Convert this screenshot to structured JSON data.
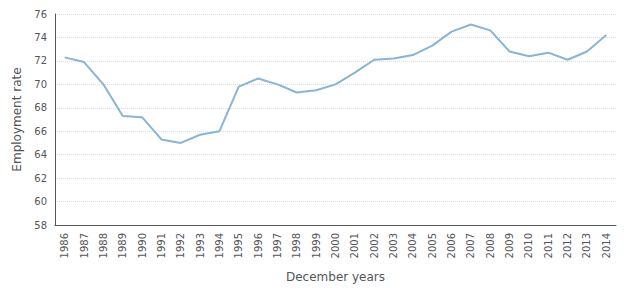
{
  "chart_data": {
    "type": "line",
    "x": [
      1986,
      1987,
      1988,
      1989,
      1990,
      1991,
      1992,
      1993,
      1994,
      1995,
      1996,
      1997,
      1998,
      1999,
      2000,
      2001,
      2002,
      2003,
      2004,
      2005,
      2006,
      2007,
      2008,
      2009,
      2010,
      2011,
      2012,
      2013,
      2014
    ],
    "values": [
      72.3,
      71.9,
      70.0,
      67.3,
      67.2,
      65.3,
      65.0,
      65.7,
      66.0,
      69.8,
      70.5,
      70.0,
      69.3,
      69.5,
      70.0,
      71.0,
      72.1,
      72.2,
      72.5,
      73.3,
      74.5,
      75.1,
      74.6,
      72.8,
      72.4,
      72.7,
      72.1,
      72.8,
      74.2
    ],
    "color": "#8ab4d4",
    "ylabel": "Employment rate",
    "xlabel": "December years",
    "xlim": [
      1985.5,
      2014.5
    ],
    "xticks": [
      1986,
      1987,
      1988,
      1989,
      1990,
      1991,
      1992,
      1993,
      1994,
      1995,
      1996,
      1997,
      1998,
      1999,
      2000,
      2001,
      2002,
      2003,
      2004,
      2005,
      2006,
      2007,
      2008,
      2009,
      2010,
      2011,
      2012,
      2013,
      2014
    ],
    "ylim": [
      58,
      76
    ],
    "yticks": [
      58,
      60,
      62,
      64,
      66,
      68,
      70,
      72,
      74,
      76
    ],
    "grid": true
  }
}
